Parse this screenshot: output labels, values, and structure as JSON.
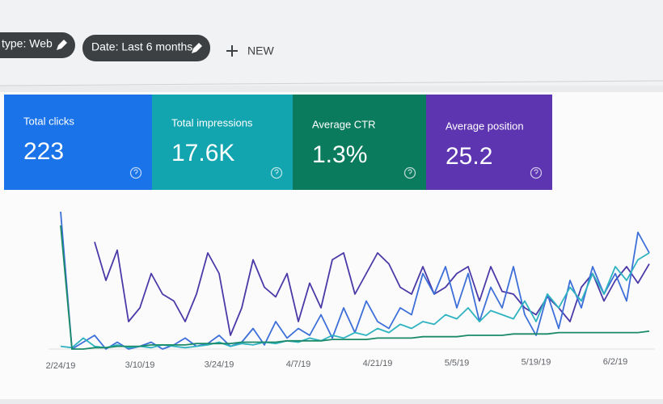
{
  "toolbar": {
    "chips": [
      "type: Web",
      "Date: Last 6 months"
    ],
    "new_button": "NEW"
  },
  "cards": [
    {
      "label": "Total clicks",
      "value": "223",
      "color": "#1a73e8"
    },
    {
      "label": "Total impressions",
      "value": "17.6K",
      "color": "#12a4af"
    },
    {
      "label": "Average CTR",
      "value": "1.3%",
      "color": "#0b7b5e"
    },
    {
      "label": "Average position",
      "value": "25.2",
      "color": "#5e35b1"
    }
  ],
  "chart_data": {
    "type": "line",
    "categories": [
      "2/24/19",
      null,
      null,
      null,
      null,
      null,
      null,
      "3/10/19",
      null,
      null,
      null,
      null,
      null,
      null,
      "3/24/19",
      null,
      null,
      null,
      null,
      null,
      null,
      "4/7/19",
      null,
      null,
      null,
      null,
      null,
      null,
      "4/21/19",
      null,
      null,
      null,
      null,
      null,
      null,
      "5/5/19",
      null,
      null,
      null,
      null,
      null,
      null,
      "5/19/19",
      null,
      null,
      null,
      null,
      null,
      null,
      "6/2/19",
      null,
      null,
      null
    ],
    "ylim": [
      0,
      100
    ],
    "series": [
      {
        "color": "#4a3aa8",
        "values": [
          null,
          null,
          null,
          78,
          50,
          72,
          20,
          30,
          55,
          40,
          35,
          20,
          40,
          70,
          55,
          10,
          30,
          65,
          45,
          38,
          55,
          20,
          48,
          30,
          65,
          70,
          40,
          55,
          70,
          62,
          45,
          40,
          60,
          40,
          45,
          55,
          60,
          35,
          60,
          42,
          40,
          30,
          25,
          38,
          30,
          20,
          45,
          55,
          35,
          50,
          60,
          48,
          62
        ]
      },
      {
        "color": "#3d6fd9",
        "values": [
          100,
          0,
          5,
          10,
          0,
          5,
          0,
          2,
          5,
          0,
          3,
          8,
          2,
          4,
          10,
          2,
          5,
          15,
          3,
          20,
          8,
          15,
          10,
          25,
          8,
          30,
          12,
          35,
          20,
          15,
          30,
          25,
          55,
          40,
          60,
          30,
          55,
          20,
          45,
          30,
          60,
          25,
          10,
          40,
          15,
          50,
          30,
          60,
          40,
          55,
          35,
          85,
          70
        ]
      },
      {
        "color": "#2fb3c0",
        "values": [
          2,
          1,
          8,
          2,
          1,
          3,
          1,
          2,
          1,
          3,
          2,
          1,
          2,
          3,
          5,
          2,
          4,
          3,
          5,
          4,
          6,
          5,
          8,
          6,
          10,
          8,
          12,
          10,
          15,
          12,
          18,
          15,
          20,
          18,
          25,
          22,
          30,
          20,
          28,
          25,
          22,
          35,
          20,
          40,
          30,
          45,
          35,
          55,
          40,
          60,
          50,
          65,
          70
        ]
      },
      {
        "color": "#1a8a68",
        "values": [
          90,
          0,
          0,
          1,
          1,
          2,
          2,
          2,
          3,
          3,
          3,
          3,
          4,
          4,
          4,
          4,
          5,
          5,
          5,
          5,
          6,
          6,
          6,
          6,
          7,
          7,
          7,
          7,
          8,
          8,
          8,
          8,
          9,
          9,
          9,
          9,
          10,
          10,
          10,
          10,
          11,
          11,
          11,
          11,
          12,
          12,
          12,
          12,
          12,
          12,
          12,
          12,
          13
        ]
      }
    ]
  }
}
